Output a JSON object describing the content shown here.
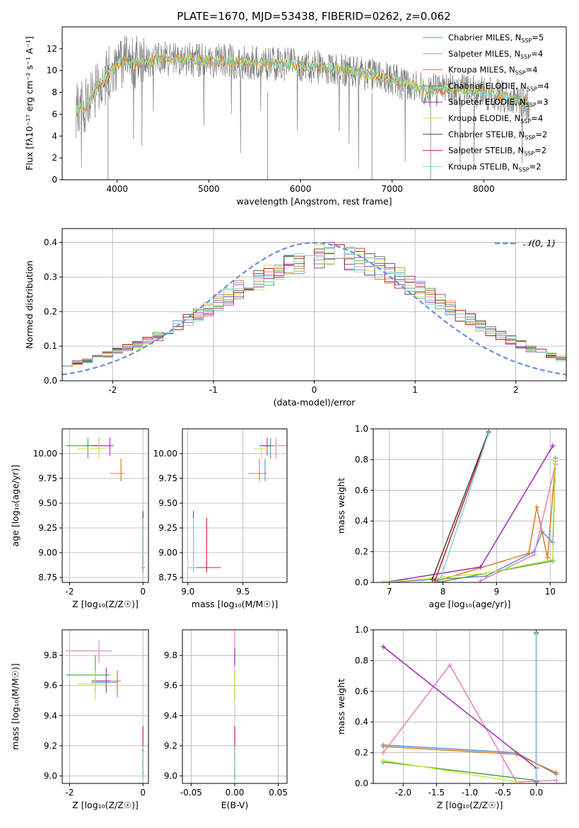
{
  "colors": {
    "Chabrier MILES": "#5b8fd6",
    "Salpeter MILES": "#e97fc2",
    "Kroupa MILES": "#e07b1e",
    "Chabrier ELODIE": "#4aa04a",
    "Salpeter ELODIE": "#9a2fb0",
    "Kroupa ELODIE": "#c9ea3a",
    "Chabrier STELIB": "#444444",
    "Salpeter STELIB": "#cc1f1f",
    "Kroupa STELIB": "#7fd6e0",
    "observed": "#808080",
    "normal": "#6a8fd8"
  },
  "chart_data": [
    {
      "id": "spectrum",
      "type": "line",
      "title": "PLATE=1670, MJD=53438, FIBERID=0262, z=0.062",
      "xlabel": "wavelength [Angstrom, rest frame]",
      "ylabel": "Flux [fλ10⁻¹⁷ erg cm⁻² s⁻¹ A⁻¹]",
      "xlim": [
        3400,
        8900
      ],
      "ylim": [
        0,
        14
      ],
      "xticks": [
        4000,
        5000,
        6000,
        7000,
        8000
      ],
      "yticks": [
        0,
        2,
        4,
        6,
        8,
        10,
        12
      ],
      "legend_position": "upper right",
      "legend": [
        {
          "model": "Chabrier MILES",
          "label": "Chabrier MILES, N",
          "sub": "SSP",
          "tail": "=5"
        },
        {
          "model": "Salpeter MILES",
          "label": "Salpeter MILES, N",
          "sub": "SSP",
          "tail": "=4"
        },
        {
          "model": "Kroupa MILES",
          "label": "Kroupa MILES, N",
          "sub": "SSP",
          "tail": "=4"
        },
        {
          "model": "Chabrier ELODIE",
          "label": "Chabrier ELODIE, N",
          "sub": "SSP",
          "tail": "=4"
        },
        {
          "model": "Salpeter ELODIE",
          "label": "Salpeter ELODIE, N",
          "sub": "SSP",
          "tail": "=3"
        },
        {
          "model": "Kroupa ELODIE",
          "label": "Kroupa ELODIE, N",
          "sub": "SSP",
          "tail": "=4"
        },
        {
          "model": "Chabrier STELIB",
          "label": "Chabrier STELIB, N",
          "sub": "SSP",
          "tail": "=2"
        },
        {
          "model": "Salpeter STELIB",
          "label": "Salpeter STELIB, N",
          "sub": "SSP",
          "tail": "=2"
        },
        {
          "model": "Kroupa STELIB",
          "label": "Kroupa STELIB, N",
          "sub": "SSP",
          "tail": "=2"
        }
      ],
      "continuum": {
        "wavelength": [
          3550,
          3650,
          3700,
          3800,
          3900,
          4000,
          4100,
          4200,
          4300,
          4500,
          4700,
          5000,
          5300,
          5600,
          5900,
          6200,
          6500,
          6800,
          7100,
          7400,
          7700,
          8000,
          8300,
          8500
        ],
        "flux": [
          6.4,
          6.6,
          7.6,
          8.6,
          9.6,
          10.6,
          10.9,
          10.7,
          10.8,
          11.1,
          11.0,
          10.9,
          10.8,
          10.7,
          10.5,
          10.3,
          10.0,
          9.6,
          8.9,
          8.2,
          8.3,
          8.0,
          7.5,
          6.9
        ]
      }
    },
    {
      "id": "residuals",
      "type": "step",
      "xlabel": "(data-model)/error",
      "ylabel": "Normed distribution",
      "xlim": [
        -2.5,
        2.5
      ],
      "ylim": [
        0,
        0.44
      ],
      "xticks": [
        -2,
        -1,
        0,
        1,
        2
      ],
      "yticks": [
        0.0,
        0.1,
        0.2,
        0.3,
        0.4
      ],
      "legend": [
        {
          "label": "𝒩(0, 1)"
        }
      ],
      "bin_width": 0.1,
      "histogram": [
        0.048,
        0.052,
        0.058,
        0.068,
        0.076,
        0.085,
        0.095,
        0.105,
        0.115,
        0.128,
        0.143,
        0.158,
        0.176,
        0.192,
        0.208,
        0.226,
        0.245,
        0.262,
        0.278,
        0.293,
        0.308,
        0.322,
        0.334,
        0.344,
        0.352,
        0.358,
        0.362,
        0.362,
        0.358,
        0.35,
        0.34,
        0.327,
        0.312,
        0.296,
        0.279,
        0.262,
        0.244,
        0.226,
        0.209,
        0.192,
        0.176,
        0.16,
        0.145,
        0.131,
        0.118,
        0.105,
        0.094,
        0.083,
        0.073,
        0.064
      ]
    },
    {
      "id": "age-vs-metallicity",
      "type": "errorbar",
      "xlabel": "Z [log₁₀(Z/Z☉)]",
      "ylabel": "age  [log₁₀(age/yr)]",
      "xlim": [
        -2.2,
        0.15
      ],
      "ylim": [
        8.7,
        10.25
      ],
      "xticks": [
        -2,
        0
      ],
      "yticks": [
        8.75,
        9.0,
        9.25,
        9.5,
        9.75,
        10.0
      ]
    },
    {
      "id": "age-vs-mass",
      "type": "errorbar",
      "xlabel": "mass [log₁₀(M/M☉)]",
      "ylabel": "",
      "xlim": [
        8.95,
        9.9
      ],
      "ylim": [
        8.7,
        10.25
      ],
      "xticks": [
        9.0,
        9.5
      ],
      "yticks": [
        8.75,
        9.0,
        9.25,
        9.5,
        9.75,
        10.0
      ]
    },
    {
      "id": "weight-vs-age",
      "type": "line",
      "xlabel": "age  [log₁₀(age/yr)]",
      "ylabel": "mass weight",
      "xlim": [
        6.7,
        10.3
      ],
      "ylim": [
        0,
        1.0
      ],
      "xticks": [
        7,
        8,
        9,
        10
      ],
      "yticks": [
        0.0,
        0.2,
        0.4,
        0.6,
        0.8,
        1.0
      ]
    },
    {
      "id": "mass-vs-metallicity",
      "type": "errorbar",
      "xlabel": "Z [log₁₀(Z/Z☉)]",
      "ylabel": "mass [log₁₀(M/M☉)]",
      "xlim": [
        -2.2,
        0.15
      ],
      "ylim": [
        8.95,
        9.97
      ],
      "xticks": [
        -2,
        0
      ],
      "yticks": [
        9.0,
        9.2,
        9.4,
        9.6,
        9.8
      ]
    },
    {
      "id": "mass-vs-ebv",
      "type": "errorbar",
      "xlabel": "E(B-V)",
      "ylabel": "",
      "xlim": [
        -0.06,
        0.06
      ],
      "ylim": [
        8.95,
        9.97
      ],
      "xticks": [
        -0.05,
        0.0,
        0.05
      ],
      "yticks": [
        9.0,
        9.2,
        9.4,
        9.6,
        9.8
      ]
    },
    {
      "id": "weight-vs-metallicity",
      "type": "line",
      "xlabel": "Z [log₁₀(Z/Z☉)]",
      "ylabel": "mass weight",
      "xlim": [
        -2.45,
        0.45
      ],
      "ylim": [
        0,
        1.0
      ],
      "xticks": [
        -2.0,
        -1.5,
        -1.0,
        -0.5,
        0.0
      ],
      "yticks": [
        0.0,
        0.2,
        0.4,
        0.6,
        0.8,
        1.0
      ]
    }
  ],
  "models": [
    {
      "name": "Chabrier MILES",
      "age": [
        {
          "x": -0.6,
          "y": 9.8,
          "xl": -0.9,
          "xr": -0.6,
          "yl": 9.72,
          "yh": 9.95
        },
        {
          "x": 0,
          "y": 8.85,
          "xl": -0.05,
          "xr": 0.05,
          "yl": 8.8,
          "yh": 9.38
        }
      ],
      "agemass": [
        {
          "x": 9.7,
          "y": 9.8,
          "xl": 9.58,
          "xr": 9.72,
          "yl": 9.72,
          "yh": 9.95
        }
      ],
      "mass": [
        {
          "x": -0.7,
          "y": 9.62,
          "xl": -1.4,
          "xr": -0.7,
          "yl": 9.52,
          "yh": 9.7
        }
      ],
      "ebv": [
        {
          "y": 9.1,
          "yl": 8.98,
          "yh": 9.2
        }
      ],
      "wage": [
        [
          6.9,
          0
        ],
        [
          8.8,
          0.04
        ],
        [
          9.7,
          0.2
        ],
        [
          9.85,
          0.33
        ],
        [
          10.05,
          0.26
        ],
        [
          10.1,
          0.8
        ]
      ],
      "wz": [
        [
          -2.3,
          0.25
        ],
        [
          -0.3,
          0.2
        ],
        [
          0.3,
          0.06
        ]
      ]
    },
    {
      "name": "Salpeter MILES",
      "age": [
        {
          "x": -1.2,
          "y": 10.08,
          "xl": -1.6,
          "xr": -0.9,
          "yl": 9.95,
          "yh": 10.16
        }
      ],
      "agemass": [
        {
          "x": 9.8,
          "y": 10.08,
          "xl": 9.72,
          "xr": 9.9,
          "yl": 9.95,
          "yh": 10.16
        }
      ],
      "mass": [
        {
          "x": -1.2,
          "y": 9.83,
          "xl": -2.1,
          "xr": -0.85,
          "yl": 9.75,
          "yh": 9.9
        }
      ],
      "ebv": [
        {
          "y": 9.85,
          "yl": 9.75,
          "yh": 9.97
        }
      ],
      "wage": [
        [
          8.7,
          0.01
        ],
        [
          9.7,
          0.18
        ],
        [
          10.1,
          0.77
        ]
      ],
      "wz": [
        [
          -2.3,
          0.2
        ],
        [
          -1.3,
          0.77
        ],
        [
          -0.3,
          0.01
        ],
        [
          0.3,
          0.02
        ]
      ]
    },
    {
      "name": "Kroupa MILES",
      "age": [
        {
          "x": -0.6,
          "y": 9.8,
          "xl": -0.9,
          "xr": -0.5,
          "yl": 9.72,
          "yh": 9.95
        },
        {
          "x": 0,
          "y": 8.85,
          "xl": -0.05,
          "xr": 0.05,
          "yl": 8.8,
          "yh": 9.35
        }
      ],
      "agemass": [
        {
          "x": 9.65,
          "y": 9.8,
          "xl": 9.55,
          "xr": 9.72,
          "yl": 9.72,
          "yh": 9.95
        }
      ],
      "mass": [
        {
          "x": -0.7,
          "y": 9.63,
          "xl": -1.3,
          "xr": -0.6,
          "yl": 9.55,
          "yh": 9.7
        }
      ],
      "ebv": [
        {
          "y": 9.1,
          "yl": 8.98,
          "yh": 9.2
        }
      ],
      "wage": [
        [
          7.9,
          0.01
        ],
        [
          9.6,
          0.19
        ],
        [
          9.75,
          0.49
        ],
        [
          9.95,
          0.16
        ],
        [
          10.1,
          0.79
        ]
      ],
      "wz": [
        [
          -2.3,
          0.24
        ],
        [
          -0.3,
          0.19
        ],
        [
          0.3,
          0.07
        ]
      ]
    },
    {
      "name": "Chabrier ELODIE",
      "age": [
        {
          "x": -1.5,
          "y": 10.08,
          "xl": -2.1,
          "xr": -1.2,
          "yl": 9.95,
          "yh": 10.16
        }
      ],
      "agemass": [
        {
          "x": 9.75,
          "y": 10.08,
          "xl": 9.65,
          "xr": 9.78,
          "yl": 9.95,
          "yh": 10.16
        }
      ],
      "mass": [
        {
          "x": -1.3,
          "y": 9.67,
          "xl": -2.1,
          "xr": -0.9,
          "yl": 9.55,
          "yh": 9.8
        }
      ],
      "ebv": [
        {
          "y": 9.6,
          "yl": 9.5,
          "yh": 9.7
        }
      ],
      "wage": [
        [
          7.9,
          0.0
        ],
        [
          10.05,
          0.14
        ],
        [
          10.1,
          0.81
        ]
      ],
      "wz": [
        [
          -2.3,
          0.14
        ],
        [
          0.0,
          0.02
        ]
      ]
    },
    {
      "name": "Salpeter ELODIE",
      "age": [
        {
          "x": -0.9,
          "y": 10.08,
          "xl": -1.4,
          "xr": -0.8,
          "yl": 9.98,
          "yh": 10.16
        }
      ],
      "agemass": [
        {
          "x": 9.72,
          "y": 10.08,
          "xl": 9.65,
          "xr": 9.75,
          "yl": 9.98,
          "yh": 10.16
        }
      ],
      "mass": [
        {
          "x": -1.0,
          "y": 9.63,
          "xl": -1.4,
          "xr": -0.9,
          "yl": 9.55,
          "yh": 9.72
        }
      ],
      "ebv": [
        {
          "y": 9.8,
          "yl": 9.73,
          "yh": 9.85
        }
      ],
      "wage": [
        [
          6.9,
          0.0
        ],
        [
          8.7,
          0.1
        ],
        [
          10.05,
          0.89
        ]
      ],
      "wz": [
        [
          -2.3,
          0.89
        ],
        [
          0.0,
          0.1
        ]
      ]
    },
    {
      "name": "Kroupa ELODIE",
      "age": [
        {
          "x": -1.2,
          "y": 10.05,
          "xl": -1.8,
          "xr": -1.0,
          "yl": 9.95,
          "yh": 10.12
        }
      ],
      "agemass": [
        {
          "x": 9.67,
          "y": 10.05,
          "xl": 9.6,
          "xr": 9.73,
          "yl": 9.95,
          "yh": 10.12
        }
      ],
      "mass": [
        {
          "x": -1.3,
          "y": 9.61,
          "xl": -1.8,
          "xr": -1.0,
          "yl": 9.5,
          "yh": 9.7
        }
      ],
      "ebv": [
        {
          "y": 9.6,
          "yl": 9.5,
          "yh": 9.7
        }
      ],
      "wage": [
        [
          6.9,
          0.0
        ],
        [
          8.8,
          0.06
        ],
        [
          10.05,
          0.15
        ],
        [
          10.1,
          0.8
        ]
      ],
      "wz": [
        [
          -2.3,
          0.15
        ],
        [
          -0.3,
          0.01
        ]
      ]
    },
    {
      "name": "Chabrier STELIB",
      "age": [
        {
          "x": 0,
          "y": 8.85,
          "xl": -0.05,
          "xr": 0.05,
          "yl": 8.8,
          "yh": 9.42
        }
      ],
      "agemass": [
        {
          "x": 9.05,
          "y": 8.85,
          "xl": 9.0,
          "xr": 9.1,
          "yl": 8.8,
          "yh": 9.42
        }
      ],
      "mass": [
        {
          "x": 0,
          "y": 9.02,
          "xl": -0.03,
          "xr": 0.03,
          "yl": 8.98,
          "yh": 9.1
        }
      ],
      "ebv": [
        {
          "y": 9.0,
          "yl": 8.98,
          "yh": 9.05
        }
      ],
      "wage": [
        [
          7.8,
          0.02
        ],
        [
          8.85,
          0.98
        ]
      ],
      "wz": [
        [
          0.0,
          0.02
        ],
        [
          0.0,
          0.98
        ]
      ]
    },
    {
      "name": "Salpeter STELIB",
      "age": [
        {
          "x": 0,
          "y": 8.85,
          "xl": -0.05,
          "xr": 0.05,
          "yl": 8.8,
          "yh": 9.35
        }
      ],
      "agemass": [
        {
          "x": 9.17,
          "y": 8.85,
          "xl": 9.08,
          "xr": 9.3,
          "yl": 8.8,
          "yh": 9.35
        }
      ],
      "mass": [
        {
          "x": 0,
          "y": 9.17,
          "xl": -0.03,
          "xr": 0.03,
          "yl": 9.05,
          "yh": 9.33
        }
      ],
      "ebv": [
        {
          "y": 9.2,
          "yl": 9.1,
          "yh": 9.33
        }
      ],
      "wage": [
        [
          7.85,
          0.01
        ],
        [
          8.85,
          0.97
        ]
      ],
      "wz": [
        [
          0.0,
          0.01
        ],
        [
          0.0,
          0.97
        ]
      ]
    },
    {
      "name": "Kroupa STELIB",
      "age": [
        {
          "x": 0,
          "y": 8.85,
          "xl": -0.05,
          "xr": 0.05,
          "yl": 8.8,
          "yh": 9.35
        }
      ],
      "agemass": [
        {
          "x": 9.05,
          "y": 8.85,
          "xl": 9.0,
          "xr": 9.08,
          "yl": 8.8,
          "yh": 9.35
        }
      ],
      "mass": [
        {
          "x": 0,
          "y": 9.02,
          "xl": -0.03,
          "xr": 0.03,
          "yl": 8.98,
          "yh": 9.2
        }
      ],
      "ebv": [
        {
          "y": 9.0,
          "yl": 8.98,
          "yh": 9.2
        }
      ],
      "wage": [
        [
          7.95,
          0.02
        ],
        [
          8.85,
          0.97
        ]
      ],
      "wz": [
        [
          0.0,
          0.02
        ],
        [
          0.0,
          0.97
        ]
      ]
    }
  ]
}
